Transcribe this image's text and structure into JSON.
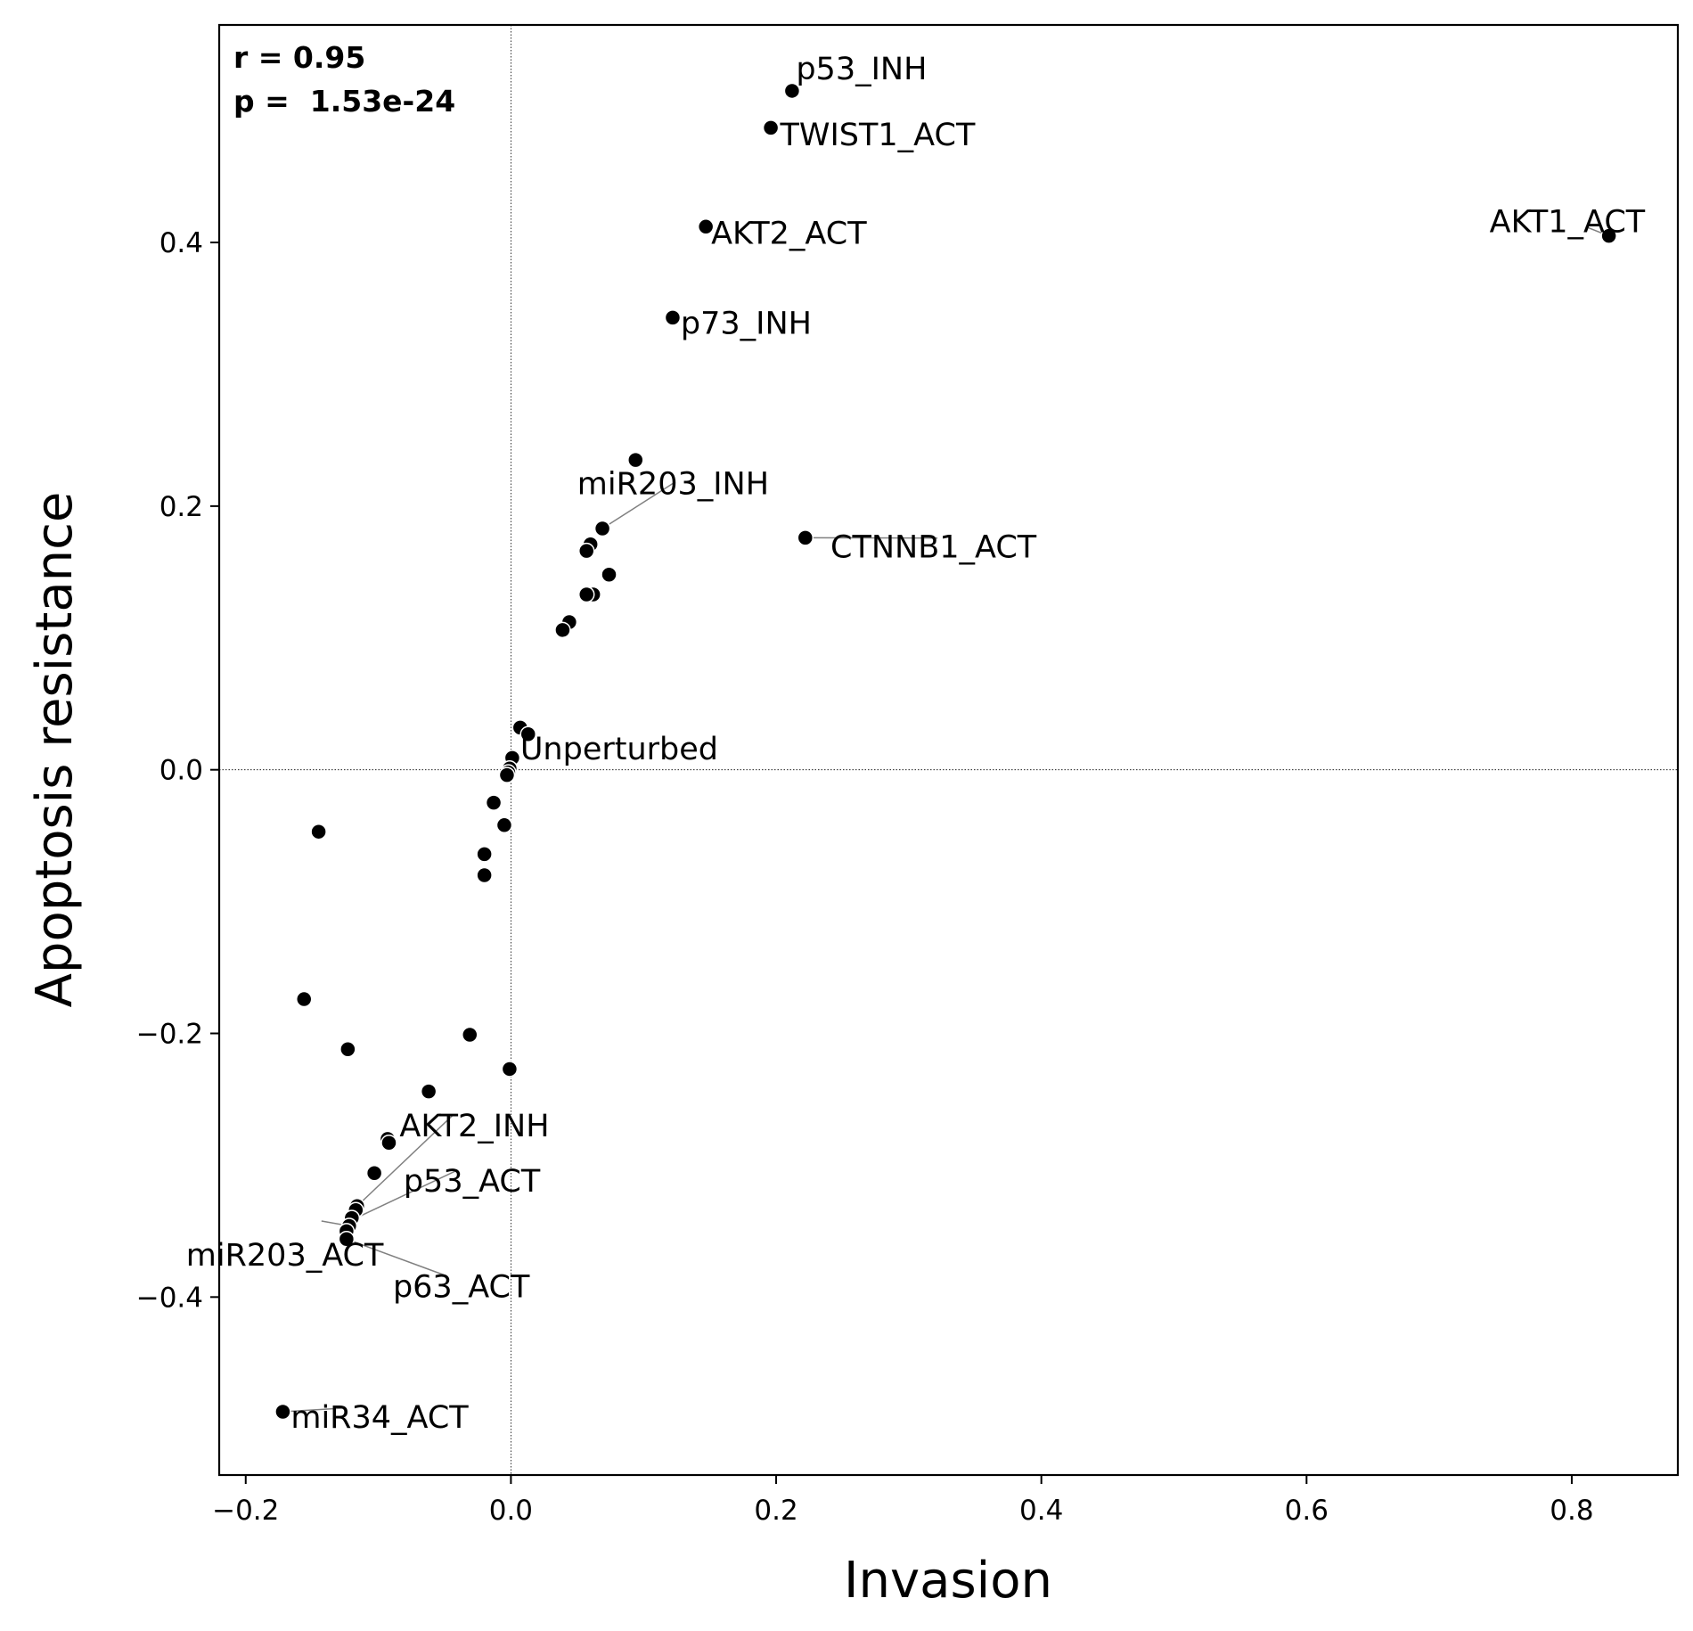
{
  "chart_data": {
    "type": "scatter",
    "xlabel": "Invasion",
    "ylabel": "Apoptosis resistance",
    "xlim": [
      -0.22,
      0.88
    ],
    "ylim": [
      -0.535,
      0.565
    ],
    "x_ticks": [
      -0.2,
      0.0,
      0.2,
      0.4,
      0.6,
      0.8
    ],
    "y_ticks": [
      -0.4,
      -0.2,
      0.0,
      0.2,
      0.4
    ],
    "x_tick_labels": [
      "−0.2",
      "0.0",
      "0.2",
      "0.4",
      "0.6",
      "0.8"
    ],
    "y_tick_labels": [
      "−0.4",
      "−0.2",
      "0.0",
      "0.2",
      "0.4"
    ],
    "reference_lines": {
      "x": 0.0,
      "y": 0.0,
      "style": "dotted"
    },
    "grid": false,
    "stats": {
      "r_text": "r = 0.95",
      "p_text": "p =  1.53e-24"
    },
    "marker_color": "#000000",
    "marker_edge_color": "#ffffff",
    "leader_line_color": "#808080",
    "points": [
      {
        "x": 0.212,
        "y": 0.515
      },
      {
        "x": 0.196,
        "y": 0.487
      },
      {
        "x": 0.828,
        "y": 0.405
      },
      {
        "x": 0.147,
        "y": 0.412
      },
      {
        "x": 0.122,
        "y": 0.343
      },
      {
        "x": 0.094,
        "y": 0.235
      },
      {
        "x": 0.069,
        "y": 0.183
      },
      {
        "x": 0.222,
        "y": 0.176
      },
      {
        "x": 0.06,
        "y": 0.171
      },
      {
        "x": 0.057,
        "y": 0.166
      },
      {
        "x": 0.074,
        "y": 0.148
      },
      {
        "x": 0.062,
        "y": 0.133
      },
      {
        "x": 0.057,
        "y": 0.133
      },
      {
        "x": 0.044,
        "y": 0.112
      },
      {
        "x": 0.039,
        "y": 0.106
      },
      {
        "x": 0.007,
        "y": 0.032
      },
      {
        "x": 0.013,
        "y": 0.027
      },
      {
        "x": 0.001,
        "y": 0.009
      },
      {
        "x": -0.001,
        "y": 0.001
      },
      {
        "x": -0.002,
        "y": -0.002
      },
      {
        "x": -0.003,
        "y": -0.004
      },
      {
        "x": -0.013,
        "y": -0.025
      },
      {
        "x": -0.005,
        "y": -0.042
      },
      {
        "x": -0.145,
        "y": -0.047
      },
      {
        "x": -0.02,
        "y": -0.064
      },
      {
        "x": -0.02,
        "y": -0.08
      },
      {
        "x": -0.156,
        "y": -0.174
      },
      {
        "x": -0.031,
        "y": -0.201
      },
      {
        "x": -0.123,
        "y": -0.212
      },
      {
        "x": -0.001,
        "y": -0.227
      },
      {
        "x": -0.062,
        "y": -0.244
      },
      {
        "x": -0.093,
        "y": -0.28
      },
      {
        "x": -0.092,
        "y": -0.283
      },
      {
        "x": -0.103,
        "y": -0.306
      },
      {
        "x": -0.116,
        "y": -0.331
      },
      {
        "x": -0.117,
        "y": -0.334
      },
      {
        "x": -0.12,
        "y": -0.34
      },
      {
        "x": -0.122,
        "y": -0.346
      },
      {
        "x": -0.124,
        "y": -0.35
      },
      {
        "x": -0.124,
        "y": -0.356
      },
      {
        "x": -0.172,
        "y": -0.487
      }
    ],
    "annotations": [
      {
        "text": "p53_INH",
        "px": 0.212,
        "py": 0.515,
        "tx": 0.215,
        "ty": 0.532,
        "ha": "start",
        "leader": false
      },
      {
        "text": "TWIST1_ACT",
        "px": 0.196,
        "py": 0.487,
        "tx": 0.203,
        "ty": 0.482,
        "ha": "start",
        "leader": false
      },
      {
        "text": "AKT1_ACT",
        "px": 0.828,
        "py": 0.405,
        "tx": 0.738,
        "ty": 0.416,
        "ha": "start",
        "leader": true
      },
      {
        "text": "AKT2_ACT",
        "px": 0.147,
        "py": 0.412,
        "tx": 0.151,
        "ty": 0.407,
        "ha": "start",
        "leader": false
      },
      {
        "text": "p73_INH",
        "px": 0.122,
        "py": 0.343,
        "tx": 0.128,
        "ty": 0.339,
        "ha": "start",
        "leader": false
      },
      {
        "text": "miR203_INH",
        "px": 0.069,
        "py": 0.183,
        "tx": 0.05,
        "ty": 0.217,
        "ha": "start",
        "leader": true
      },
      {
        "text": "CTNNB1_ACT",
        "px": 0.222,
        "py": 0.176,
        "tx": 0.241,
        "ty": 0.169,
        "ha": "start",
        "leader": true
      },
      {
        "text": "Unperturbed",
        "px": 0.001,
        "py": 0.009,
        "tx": 0.007,
        "ty": 0.016,
        "ha": "start",
        "leader": false
      },
      {
        "text": "AKT2_INH",
        "px": -0.116,
        "py": -0.331,
        "tx": -0.084,
        "ty": -0.27,
        "ha": "start",
        "leader": true
      },
      {
        "text": "p53_ACT",
        "px": -0.121,
        "py": -0.342,
        "tx": -0.081,
        "ty": -0.312,
        "ha": "start",
        "leader": true
      },
      {
        "text": "miR203_ACT",
        "px": -0.122,
        "py": -0.346,
        "tx": -0.245,
        "ty": -0.368,
        "ha": "start",
        "leader": true
      },
      {
        "text": "p63_ACT",
        "px": -0.124,
        "py": -0.356,
        "tx": -0.089,
        "ty": -0.392,
        "ha": "start",
        "leader": true
      },
      {
        "text": "miR34_ACT",
        "px": -0.172,
        "py": -0.487,
        "tx": -0.166,
        "ty": -0.491,
        "ha": "start",
        "leader": true
      }
    ]
  }
}
